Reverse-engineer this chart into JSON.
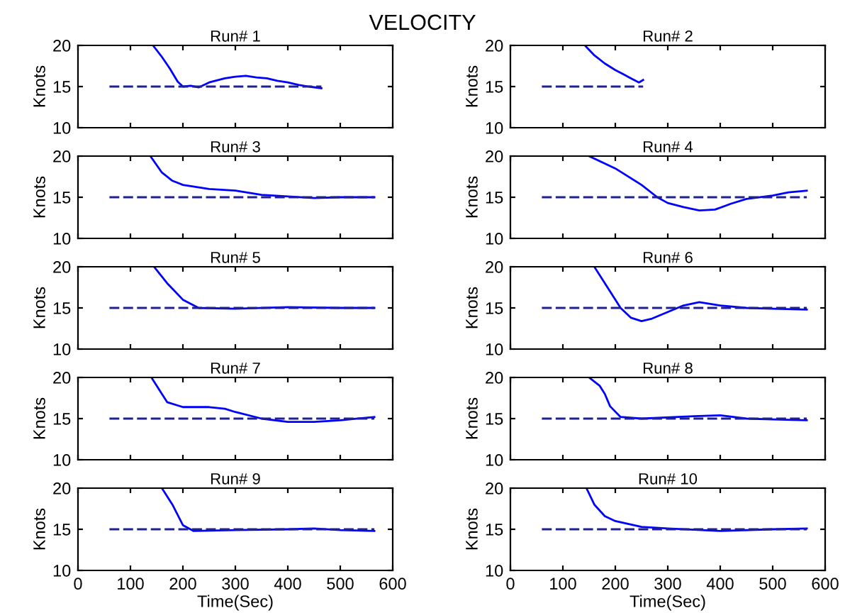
{
  "chart_data": [
    {
      "type": "line",
      "title": "Run# 1",
      "ylabel": "Knots",
      "annotations": [
        "VELOCITY"
      ],
      "xlim": [
        0,
        600
      ],
      "xticks": [
        0,
        100,
        200,
        300,
        400,
        500,
        600
      ],
      "ylim": [
        10,
        20
      ],
      "yticks": [
        10,
        15,
        20
      ],
      "tick_labels": "y",
      "grid": false,
      "legend": false,
      "series": [
        {
          "color": "#0000ff",
          "line_style": "solid",
          "x": [
            143,
            160,
            175,
            190,
            200,
            215,
            230,
            250,
            280,
            300,
            320,
            340,
            360,
            380,
            400,
            420,
            440,
            464
          ],
          "values": [
            20,
            18.6,
            17.2,
            15.6,
            15,
            15.1,
            14.9,
            15.5,
            16,
            16.2,
            16.3,
            16.1,
            16,
            15.7,
            15.5,
            15.2,
            15,
            14.8
          ]
        },
        {
          "color": "#202090",
          "line_style": "dashed",
          "x": [
            60,
            464
          ],
          "values": [
            15,
            15
          ]
        }
      ]
    },
    {
      "type": "line",
      "title": "Run# 2",
      "ylabel": "Knots",
      "xlim": [
        0,
        600
      ],
      "xticks": [
        0,
        100,
        200,
        300,
        400,
        500,
        600
      ],
      "ylim": [
        10,
        20
      ],
      "yticks": [
        10,
        15,
        20
      ],
      "tick_labels": "y",
      "grid": false,
      "legend": false,
      "series": [
        {
          "color": "#0000ff",
          "line_style": "solid",
          "x": [
            142,
            160,
            180,
            200,
            215,
            230,
            245,
            253
          ],
          "values": [
            20,
            18.8,
            17.8,
            17,
            16.5,
            16,
            15.5,
            15.8
          ]
        },
        {
          "color": "#202090",
          "line_style": "dashed",
          "x": [
            60,
            253
          ],
          "values": [
            15,
            15
          ]
        }
      ]
    },
    {
      "type": "line",
      "title": "Run# 3",
      "ylabel": "Knots",
      "xlim": [
        0,
        600
      ],
      "xticks": [
        0,
        100,
        200,
        300,
        400,
        500,
        600
      ],
      "ylim": [
        10,
        20
      ],
      "yticks": [
        10,
        15,
        20
      ],
      "tick_labels": "y",
      "grid": false,
      "legend": false,
      "series": [
        {
          "color": "#0000ff",
          "line_style": "solid",
          "x": [
            138,
            160,
            180,
            200,
            250,
            300,
            350,
            400,
            450,
            500,
            565
          ],
          "values": [
            20,
            18,
            17,
            16.5,
            16,
            15.8,
            15.3,
            15.1,
            14.9,
            15,
            15
          ]
        },
        {
          "color": "#202090",
          "line_style": "dashed",
          "x": [
            60,
            565
          ],
          "values": [
            15,
            15
          ]
        }
      ]
    },
    {
      "type": "line",
      "title": "Run# 4",
      "ylabel": "Knots",
      "xlim": [
        0,
        600
      ],
      "xticks": [
        0,
        100,
        200,
        300,
        400,
        500,
        600
      ],
      "ylim": [
        10,
        20
      ],
      "yticks": [
        10,
        15,
        20
      ],
      "tick_labels": "y",
      "grid": false,
      "legend": false,
      "series": [
        {
          "color": "#0000ff",
          "line_style": "solid",
          "x": [
            150,
            200,
            250,
            280,
            300,
            330,
            360,
            390,
            420,
            450,
            500,
            530,
            565
          ],
          "values": [
            20,
            18.5,
            16.5,
            15,
            14.3,
            13.8,
            13.4,
            13.5,
            14.2,
            14.8,
            15.2,
            15.6,
            15.8
          ]
        },
        {
          "color": "#202090",
          "line_style": "dashed",
          "x": [
            60,
            565
          ],
          "values": [
            15,
            15
          ]
        }
      ]
    },
    {
      "type": "line",
      "title": "Run# 5",
      "ylabel": "Knots",
      "xlim": [
        0,
        600
      ],
      "xticks": [
        0,
        100,
        200,
        300,
        400,
        500,
        600
      ],
      "ylim": [
        10,
        20
      ],
      "yticks": [
        10,
        15,
        20
      ],
      "tick_labels": "y",
      "grid": false,
      "legend": false,
      "series": [
        {
          "color": "#0000ff",
          "line_style": "solid",
          "x": [
            145,
            170,
            200,
            230,
            300,
            400,
            500,
            565
          ],
          "values": [
            20,
            18,
            16,
            15,
            14.9,
            15.1,
            15,
            15
          ]
        },
        {
          "color": "#202090",
          "line_style": "dashed",
          "x": [
            60,
            565
          ],
          "values": [
            15,
            15
          ]
        }
      ]
    },
    {
      "type": "line",
      "title": "Run# 6",
      "ylabel": "Knots",
      "xlim": [
        0,
        600
      ],
      "xticks": [
        0,
        100,
        200,
        300,
        400,
        500,
        600
      ],
      "ylim": [
        10,
        20
      ],
      "yticks": [
        10,
        15,
        20
      ],
      "tick_labels": "y",
      "grid": false,
      "legend": false,
      "series": [
        {
          "color": "#0000ff",
          "line_style": "solid",
          "x": [
            160,
            190,
            210,
            230,
            250,
            270,
            300,
            330,
            360,
            400,
            450,
            500,
            565
          ],
          "values": [
            20,
            17,
            15,
            13.8,
            13.4,
            13.7,
            14.5,
            15.3,
            15.7,
            15.3,
            15,
            14.9,
            14.8
          ]
        },
        {
          "color": "#202090",
          "line_style": "dashed",
          "x": [
            60,
            565
          ],
          "values": [
            15,
            15
          ]
        }
      ]
    },
    {
      "type": "line",
      "title": "Run# 7",
      "ylabel": "Knots",
      "xlim": [
        0,
        600
      ],
      "xticks": [
        0,
        100,
        200,
        300,
        400,
        500,
        600
      ],
      "ylim": [
        10,
        20
      ],
      "yticks": [
        10,
        15,
        20
      ],
      "tick_labels": "y",
      "grid": false,
      "legend": false,
      "series": [
        {
          "color": "#0000ff",
          "line_style": "solid",
          "x": [
            140,
            160,
            170,
            200,
            250,
            280,
            300,
            350,
            400,
            450,
            500,
            565
          ],
          "values": [
            20,
            18,
            17,
            16.4,
            16.4,
            16.2,
            15.8,
            15,
            14.6,
            14.6,
            14.8,
            15.2
          ]
        },
        {
          "color": "#202090",
          "line_style": "dashed",
          "x": [
            60,
            565
          ],
          "values": [
            15,
            15
          ]
        }
      ]
    },
    {
      "type": "line",
      "title": "Run# 8",
      "ylabel": "Knots",
      "xlim": [
        0,
        600
      ],
      "xticks": [
        0,
        100,
        200,
        300,
        400,
        500,
        600
      ],
      "ylim": [
        10,
        20
      ],
      "yticks": [
        10,
        15,
        20
      ],
      "tick_labels": "y",
      "grid": false,
      "legend": false,
      "series": [
        {
          "color": "#0000ff",
          "line_style": "solid",
          "x": [
            150,
            170,
            180,
            190,
            210,
            250,
            350,
            400,
            450,
            500,
            565
          ],
          "values": [
            20,
            19,
            18,
            16.5,
            15.2,
            15,
            15.3,
            15.4,
            15,
            14.9,
            14.8
          ]
        },
        {
          "color": "#202090",
          "line_style": "dashed",
          "x": [
            60,
            565
          ],
          "values": [
            15,
            15
          ]
        }
      ]
    },
    {
      "type": "line",
      "title": "Run# 9",
      "ylabel": "Knots",
      "xlabel": "Time(Sec)",
      "xlim": [
        0,
        600
      ],
      "xticks": [
        0,
        100,
        200,
        300,
        400,
        500,
        600
      ],
      "ylim": [
        10,
        20
      ],
      "yticks": [
        10,
        15,
        20
      ],
      "grid": false,
      "legend": false,
      "series": [
        {
          "color": "#0000ff",
          "line_style": "solid",
          "x": [
            160,
            180,
            200,
            220,
            300,
            400,
            450,
            500,
            565
          ],
          "values": [
            20,
            18,
            15.5,
            14.8,
            14.9,
            15,
            15.1,
            14.9,
            14.8
          ]
        },
        {
          "color": "#202090",
          "line_style": "dashed",
          "x": [
            60,
            565
          ],
          "values": [
            15,
            15
          ]
        }
      ]
    },
    {
      "type": "line",
      "title": "Run# 10",
      "ylabel": "Knots",
      "xlabel": "Time(Sec)",
      "xlim": [
        0,
        600
      ],
      "xticks": [
        0,
        100,
        200,
        300,
        400,
        500,
        600
      ],
      "ylim": [
        10,
        20
      ],
      "yticks": [
        10,
        15,
        20
      ],
      "grid": false,
      "legend": false,
      "series": [
        {
          "color": "#0000ff",
          "line_style": "solid",
          "x": [
            145,
            160,
            180,
            200,
            250,
            300,
            400,
            500,
            565
          ],
          "values": [
            20,
            18,
            16.6,
            16,
            15.3,
            15.1,
            14.8,
            15,
            15.1
          ]
        },
        {
          "color": "#202090",
          "line_style": "dashed",
          "x": [
            60,
            565
          ],
          "values": [
            15,
            15
          ]
        }
      ]
    }
  ]
}
